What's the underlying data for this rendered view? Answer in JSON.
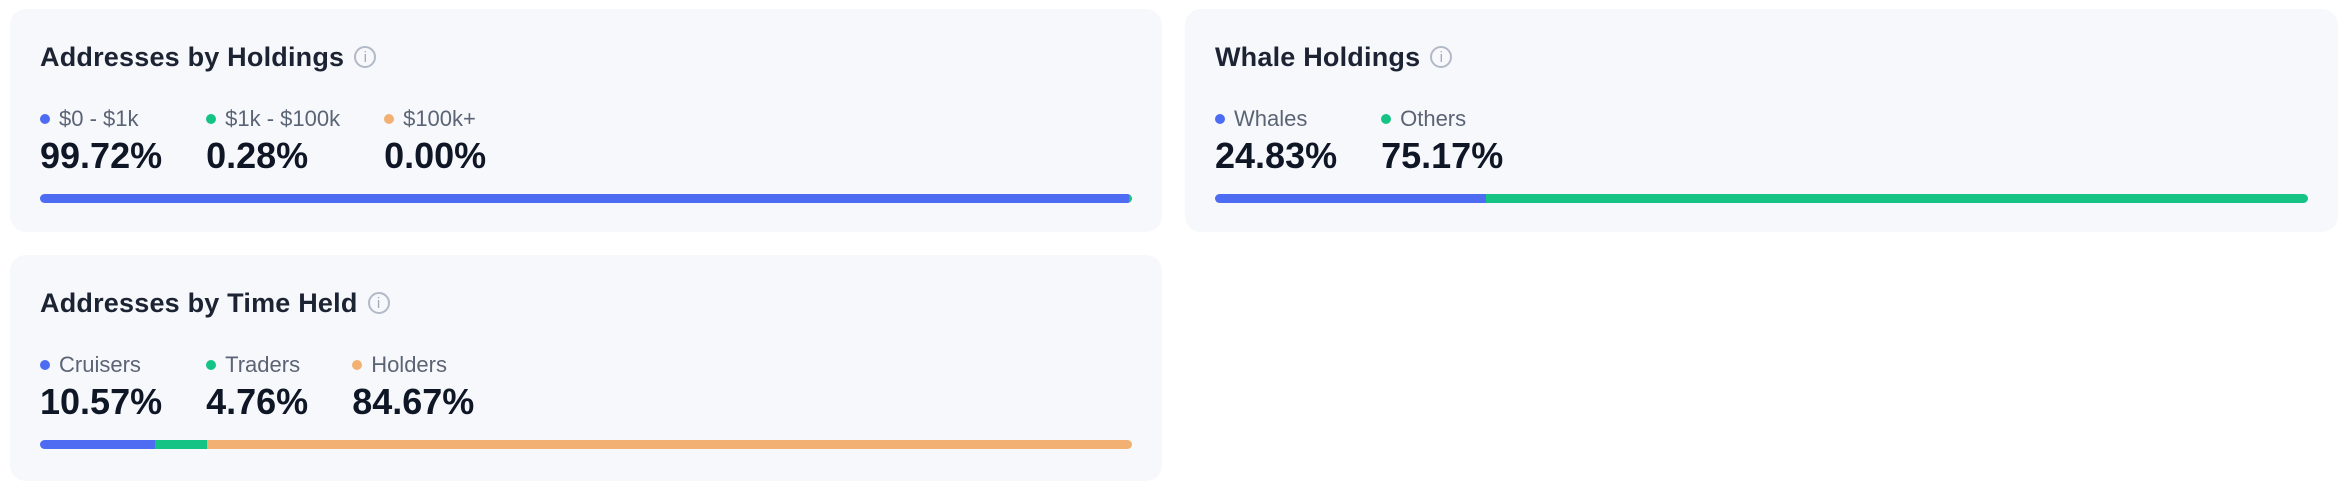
{
  "colors": {
    "blue": "#4e6cf2",
    "green": "#15c484",
    "orange": "#f2b173",
    "card_bg": "#f7f8fc",
    "title_text": "#1c2333",
    "value_text": "#0f1726",
    "legend_text": "#5b6475",
    "info_icon": "#a2abba"
  },
  "icons": {
    "info_glyph": "i"
  },
  "cards": [
    {
      "title": "Addresses by Holdings",
      "segments": [
        {
          "label": "$0 - $1k",
          "value": "99.72%",
          "pct": 99.72,
          "color": "blue"
        },
        {
          "label": "$1k - $100k",
          "value": "0.28%",
          "pct": 0.28,
          "color": "green"
        },
        {
          "label": "$100k+",
          "value": "0.00%",
          "pct": 0,
          "color": "orange"
        }
      ]
    },
    {
      "title": "Whale Holdings",
      "segments": [
        {
          "label": "Whales",
          "value": "24.83%",
          "pct": 24.83,
          "color": "blue"
        },
        {
          "label": "Others",
          "value": "75.17%",
          "pct": 75.17,
          "color": "green"
        }
      ]
    },
    {
      "title": "Addresses by Time Held",
      "segments": [
        {
          "label": "Cruisers",
          "value": "10.57%",
          "pct": 10.57,
          "color": "blue"
        },
        {
          "label": "Traders",
          "value": "4.76%",
          "pct": 4.76,
          "color": "green"
        },
        {
          "label": "Holders",
          "value": "84.67%",
          "pct": 84.67,
          "color": "orange"
        }
      ]
    }
  ]
}
